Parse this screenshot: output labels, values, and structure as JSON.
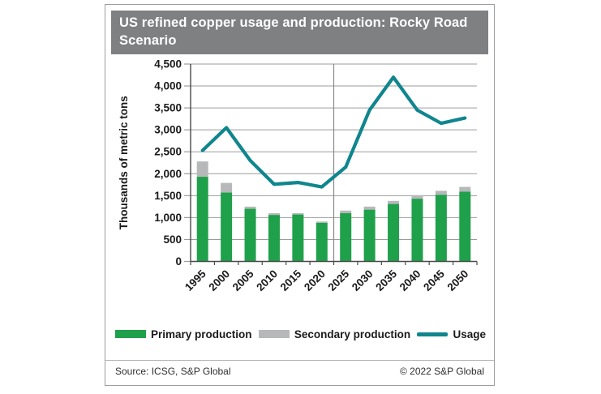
{
  "chart": {
    "title": "US refined copper usage and production: Rocky Road Scenario",
    "title_bar_color": "#7F8082",
    "axis_text_color": "#1a1a1a",
    "gridline_color": "#9b9b9b",
    "spine_color": "#4a4a4a",
    "divider_color": "#8a8a8a"
  },
  "chart_data": {
    "type": "bar",
    "subtype": "stacked-bar-with-line",
    "title": "US refined copper usage and production: Rocky Road Scenario",
    "xlabel": "",
    "ylabel": "Thousands of metric tons",
    "ylim": [
      0,
      4500
    ],
    "ytick_interval": 500,
    "grid": "horizontal",
    "legend_position": "bottom",
    "forecast_divider_after_category": "2020",
    "categories": [
      "1995",
      "2000",
      "2005",
      "2010",
      "2015",
      "2020",
      "2025",
      "2030",
      "2035",
      "2040",
      "2045",
      "2050"
    ],
    "series": [
      {
        "name": "Primary production",
        "type": "bar",
        "stack": "production",
        "color": "#1FA04A",
        "values": [
          1930,
          1570,
          1200,
          1060,
          1070,
          880,
          1100,
          1180,
          1310,
          1430,
          1520,
          1590
        ]
      },
      {
        "name": "Secondary production",
        "type": "bar",
        "stack": "production",
        "color": "#B6B8BA",
        "values": [
          350,
          220,
          50,
          40,
          30,
          30,
          60,
          70,
          70,
          80,
          90,
          110
        ]
      },
      {
        "name": "Usage",
        "type": "line",
        "color": "#0F868E",
        "values": [
          2530,
          3050,
          2300,
          1760,
          1800,
          1700,
          2150,
          3450,
          4200,
          3450,
          3150,
          3270
        ]
      }
    ]
  },
  "legend": {
    "items": [
      {
        "label": "Primary production",
        "swatch": "bar",
        "color": "#1FA04A"
      },
      {
        "label": "Secondary production",
        "swatch": "bar",
        "color": "#B6B8BA"
      },
      {
        "label": "Usage",
        "swatch": "line",
        "color": "#0F868E"
      }
    ]
  },
  "footer": {
    "source": "Source: ICSG, S&P Global",
    "copyright": "© 2022 S&P Global"
  }
}
